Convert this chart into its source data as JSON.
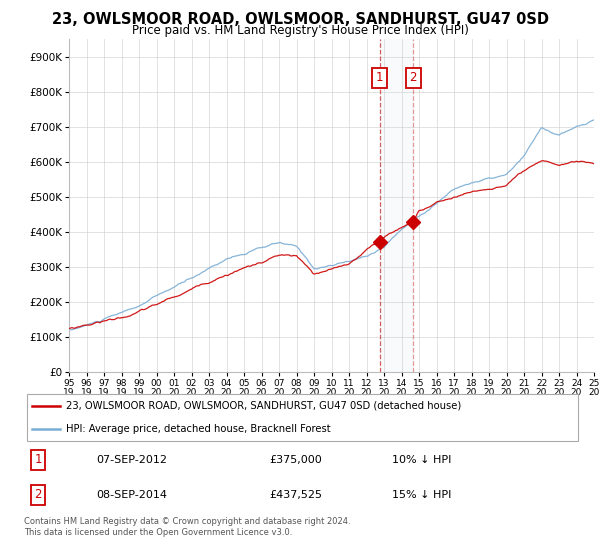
{
  "title": "23, OWLSMOOR ROAD, OWLSMOOR, SANDHURST, GU47 0SD",
  "subtitle": "Price paid vs. HM Land Registry's House Price Index (HPI)",
  "legend_line1": "23, OWLSMOOR ROAD, OWLSMOOR, SANDHURST, GU47 0SD (detached house)",
  "legend_line2": "HPI: Average price, detached house, Bracknell Forest",
  "event1_date": "07-SEP-2012",
  "event1_price": "£375,000",
  "event1_hpi": "10% ↓ HPI",
  "event2_date": "08-SEP-2014",
  "event2_price": "£437,525",
  "event2_hpi": "15% ↓ HPI",
  "footer": "Contains HM Land Registry data © Crown copyright and database right 2024.\nThis data is licensed under the Open Government Licence v3.0.",
  "red_color": "#cc0000",
  "blue_color": "#7aadd4",
  "event1_year": 2012.75,
  "event2_year": 2014.67,
  "ylim_bottom": 0,
  "ylim_top": 950000,
  "xlim_left": 1995.0,
  "xlim_right": 2025.0,
  "event1_price_val": 375000,
  "event2_price_val": 437525
}
